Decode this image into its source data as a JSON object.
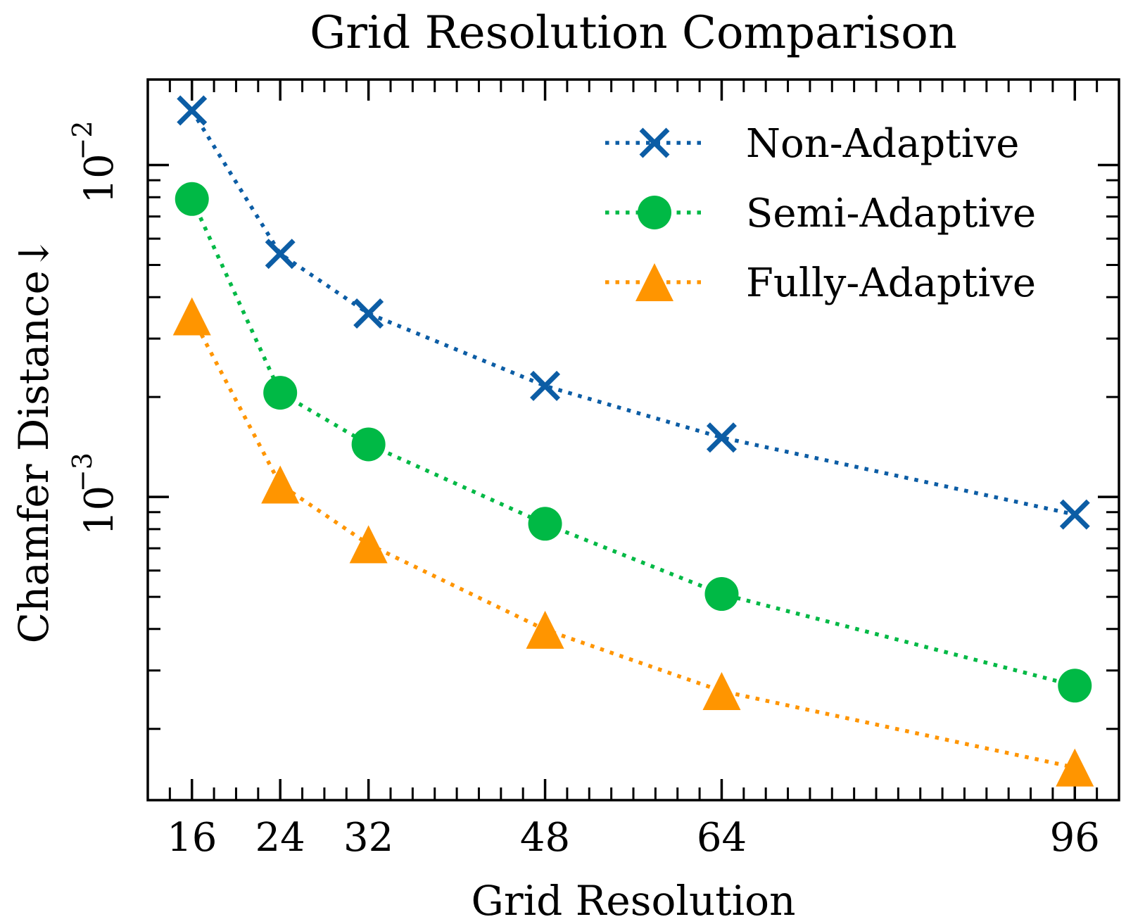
{
  "chart_data": {
    "type": "line",
    "title": "Grid Resolution Comparison",
    "xlabel": "Grid Resolution",
    "ylabel": "Chamfer Distance↓",
    "xscale": "linear",
    "yscale": "log",
    "xlim": [
      12,
      100
    ],
    "ylim": [
      0.000122,
      0.0181
    ],
    "x": [
      16,
      24,
      32,
      48,
      64,
      96
    ],
    "xticks": [
      16,
      24,
      32,
      48,
      64,
      96
    ],
    "xtick_labels": [
      "16",
      "24",
      "32",
      "48",
      "64",
      "96"
    ],
    "xminor_step": 2,
    "yticks": [
      {
        "value": 0.01,
        "base": "10",
        "exponent": "−2"
      },
      {
        "value": 0.001,
        "base": "10",
        "exponent": "−3"
      }
    ],
    "grid": false,
    "legend_position": "top-right",
    "series": [
      {
        "name": "Non-Adaptive",
        "color": "#0C5DA5",
        "marker": "x",
        "linestyle": "dotted",
        "values": [
          0.0146,
          0.0054,
          0.00357,
          0.00216,
          0.00151,
          0.000885
        ]
      },
      {
        "name": "Semi-Adaptive",
        "color": "#00B945",
        "marker": "circle",
        "linestyle": "dotted",
        "values": [
          0.0079,
          0.00206,
          0.00144,
          0.00083,
          0.00051,
          0.00027
        ]
      },
      {
        "name": "Fully-Adaptive",
        "color": "#FF9500",
        "marker": "triangle-up",
        "linestyle": "dotted",
        "values": [
          0.0035,
          0.00109,
          0.00072,
          0.000398,
          0.00026,
          0.000153
        ]
      }
    ]
  }
}
